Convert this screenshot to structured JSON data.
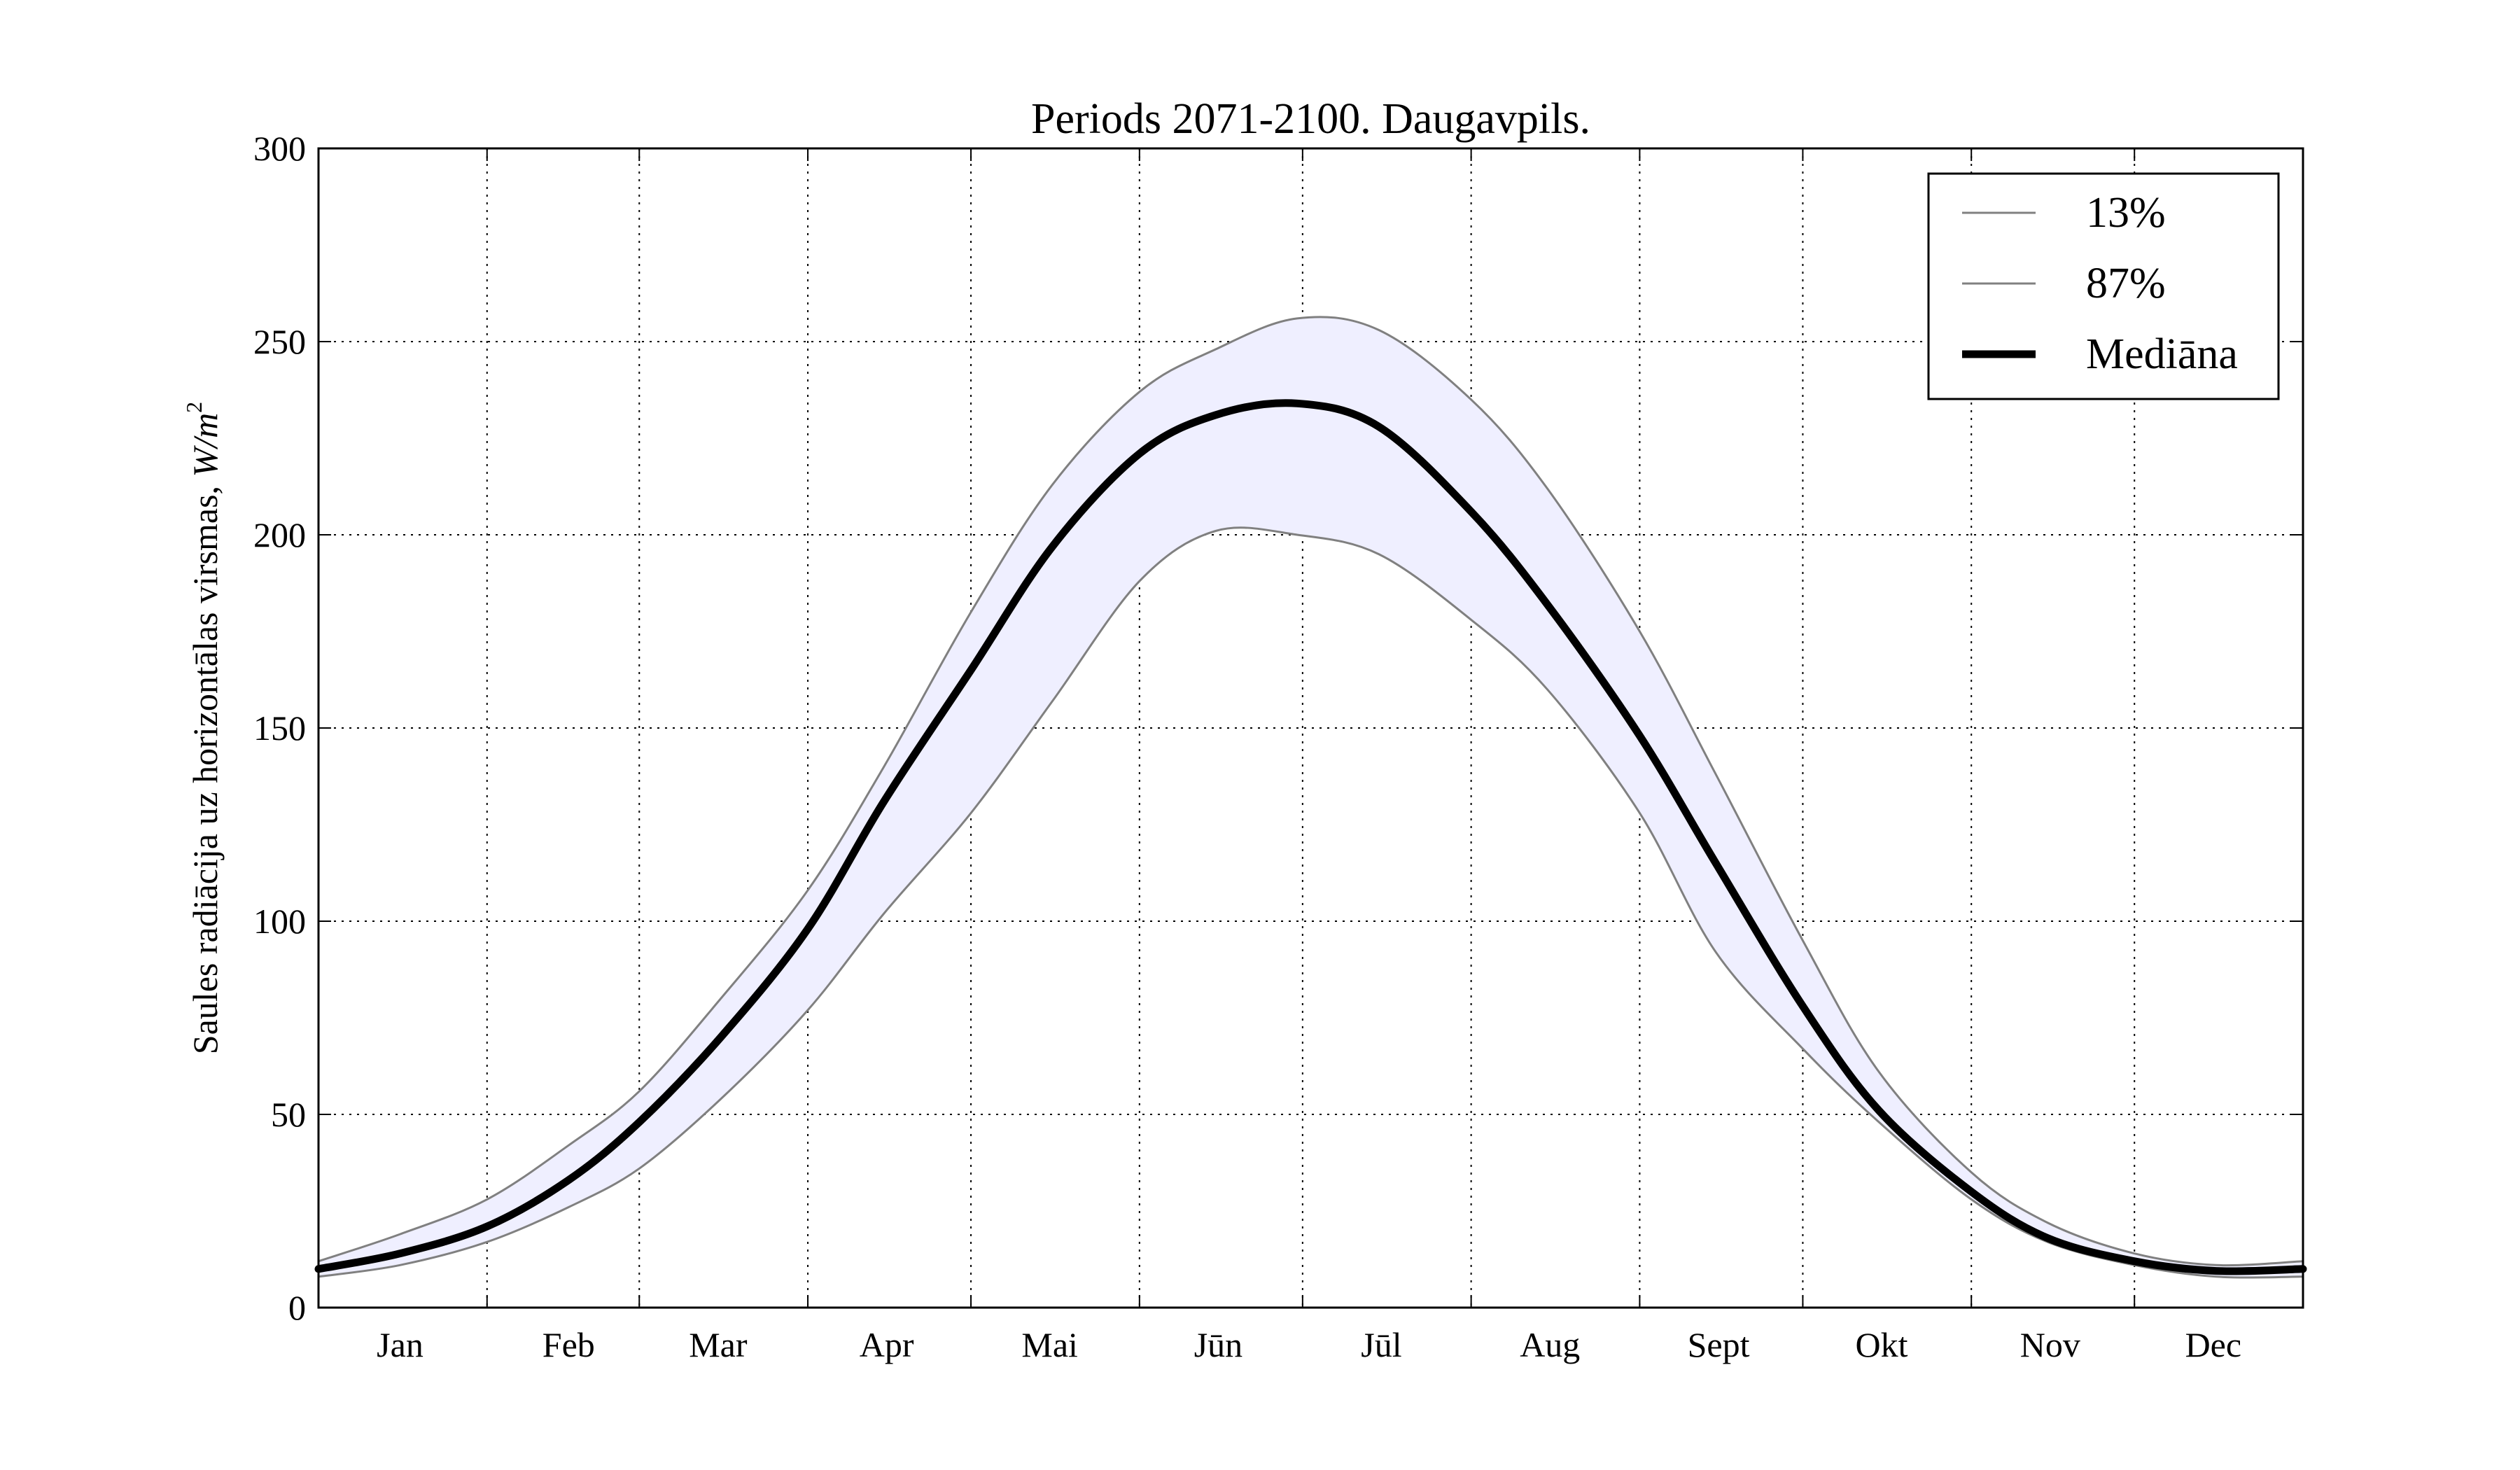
{
  "chart_data": {
    "type": "line",
    "title": "Periods 2071-2100. Daugavpils.",
    "xlabel": "",
    "ylabel_text": "Saules radiācija uz horizontālas virsmas, ",
    "ylabel_unit": "W/m",
    "ylabel_unit_exponent": "2",
    "xlim": [
      0,
      365
    ],
    "ylim": [
      0,
      300
    ],
    "yticks": [
      0,
      50,
      100,
      150,
      200,
      250,
      300
    ],
    "xticks_grid": [
      31,
      59,
      90,
      120,
      151,
      181,
      212,
      243,
      273,
      304,
      334
    ],
    "month_labels": [
      {
        "label": "Jan",
        "x": 15
      },
      {
        "label": "Feb",
        "x": 46
      },
      {
        "label": "Mar",
        "x": 73.5
      },
      {
        "label": "Apr",
        "x": 104.5
      },
      {
        "label": "Mai",
        "x": 134.5
      },
      {
        "label": "Jūn",
        "x": 165.5
      },
      {
        "label": "Jūl",
        "x": 195.5
      },
      {
        "label": "Aug",
        "x": 226.5
      },
      {
        "label": "Sept",
        "x": 257.5
      },
      {
        "label": "Okt",
        "x": 287.5
      },
      {
        "label": "Nov",
        "x": 318.5
      },
      {
        "label": "Dec",
        "x": 348.5
      }
    ],
    "grid": true,
    "legend_position": "top-right",
    "fill_between": {
      "lower": "87%",
      "upper": "13%",
      "color": "#efefff"
    },
    "series": [
      {
        "name": "13%",
        "color": "#808080",
        "linewidth": "thin",
        "x": [
          0,
          15,
          31,
          46,
          59,
          74,
          90,
          104,
          120,
          135,
          151,
          165,
          180,
          195,
          212,
          226,
          243,
          257,
          273,
          287,
          304,
          318,
          334,
          349,
          365
        ],
        "y": [
          12,
          19,
          28,
          42,
          56,
          80,
          108,
          140,
          180,
          213,
          237,
          248,
          256,
          253,
          235,
          212,
          175,
          138,
          95,
          61,
          35,
          22,
          14,
          11,
          12
        ]
      },
      {
        "name": "87%",
        "color": "#808080",
        "linewidth": "thin",
        "x": [
          0,
          15,
          31,
          46,
          59,
          74,
          90,
          104,
          120,
          135,
          151,
          165,
          180,
          195,
          212,
          226,
          243,
          257,
          273,
          287,
          304,
          318,
          334,
          349,
          365
        ],
        "y": [
          8,
          11,
          17,
          26,
          36,
          54,
          77,
          102,
          128,
          157,
          188,
          201,
          200,
          195,
          178,
          160,
          128,
          92,
          67,
          48,
          28,
          17,
          11,
          8,
          8
        ]
      },
      {
        "name": "Mediāna",
        "color": "#000000",
        "linewidth": "thick",
        "x": [
          0,
          15,
          31,
          46,
          59,
          74,
          90,
          104,
          120,
          135,
          151,
          165,
          180,
          195,
          212,
          226,
          243,
          257,
          273,
          287,
          304,
          318,
          334,
          349,
          365
        ],
        "y": [
          10,
          14,
          21,
          33,
          48,
          70,
          98,
          131,
          165,
          197,
          221,
          231,
          234,
          228,
          206,
          182,
          148,
          115,
          78,
          51,
          30,
          18,
          12,
          9.5,
          10
        ]
      }
    ]
  }
}
